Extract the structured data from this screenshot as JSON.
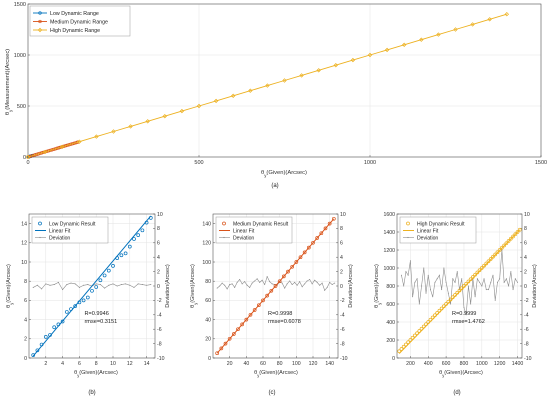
{
  "chart_data": [
    {
      "id": "a",
      "type": "line",
      "caption": "(a)",
      "xlabel": "θ_y(Given)(Arcsec)",
      "ylabel": "θ_y(Measurement)(Arcsec)",
      "xlim": [
        0,
        1500
      ],
      "ylim": [
        0,
        1500
      ],
      "xticks": [
        0,
        500,
        1000,
        1500
      ],
      "yticks": [
        0,
        500,
        1000,
        1500
      ],
      "grid": true,
      "legend": "top-left",
      "series": [
        {
          "name": "Low Dynamic Range",
          "color": "#0072BD",
          "marker": "circle",
          "x_range": [
            0,
            14.5
          ],
          "step": 0.5,
          "slope": 1.0
        },
        {
          "name": "Medium Dynamic Range",
          "color": "#D95319",
          "marker": "circle",
          "x_range": [
            0,
            145
          ],
          "step": 5,
          "slope": 1.0
        },
        {
          "name": "High Dynamic Range",
          "color": "#EDB120",
          "marker": "diamond",
          "x_range": [
            0,
            1400
          ],
          "step": 50,
          "slope": 1.0
        }
      ]
    },
    {
      "id": "b",
      "type": "line",
      "caption": "(b)",
      "xlabel": "θ_y(Given)(Arcsec)",
      "ylabel": "θ_y(Given)(Arcsec)",
      "y2label": "Deviation(Arcsec)",
      "xlim": [
        0,
        15
      ],
      "ylim": [
        0,
        15
      ],
      "y2lim": [
        -10,
        10
      ],
      "xticks": [
        2,
        4,
        6,
        8,
        10,
        12,
        14
      ],
      "yticks": [
        0,
        2,
        4,
        6,
        8,
        10,
        12,
        14
      ],
      "y2ticks": [
        -10,
        -8,
        -6,
        -4,
        -2,
        0,
        2,
        4,
        6,
        8,
        10
      ],
      "grid": true,
      "legend": "top-left",
      "color": "#0072BD",
      "marker": "circle",
      "legend_labels": [
        "Low Dynamic Result",
        "Linear Fit",
        "Deviation"
      ],
      "fit": {
        "x0": 0.5,
        "x1": 14.5,
        "y0": 0.2,
        "y1": 14.8
      },
      "result_x": [
        0.5,
        1,
        1.5,
        2,
        2.5,
        3,
        3.5,
        4,
        4.5,
        5,
        5.5,
        6,
        6.5,
        7,
        7.5,
        8,
        8.5,
        9,
        9.5,
        10,
        10.5,
        11,
        11.5,
        12,
        12.5,
        13,
        13.5,
        14,
        14.5
      ],
      "result_y": [
        0.3,
        0.8,
        1.4,
        2.2,
        2.4,
        3.2,
        3.5,
        3.8,
        4.8,
        5.1,
        5.4,
        5.8,
        6.0,
        6.3,
        7.0,
        7.4,
        8.1,
        8.6,
        9.1,
        9.6,
        10.4,
        10.7,
        10.9,
        11.6,
        12.4,
        12.8,
        13.3,
        14.1,
        14.6
      ],
      "deviation_x": [
        0.5,
        1,
        1.5,
        2,
        2.5,
        3,
        3.5,
        4,
        4.5,
        5,
        5.5,
        6,
        6.5,
        7,
        7.5,
        8,
        8.5,
        9,
        9.5,
        10,
        10.5,
        11,
        11.5,
        12,
        12.5,
        13,
        13.5,
        14,
        14.5
      ],
      "deviation_y": [
        -0.2,
        0.1,
        -0.4,
        0.3,
        0.1,
        0.2,
        0.5,
        -0.5,
        0.2,
        0.4,
        0.3,
        -0.2,
        0.1,
        0.2,
        0.0,
        0.3,
        0.2,
        -0.3,
        0.1,
        0.3,
        0.0,
        0.2,
        0.3,
        0.1,
        -0.2,
        0.3,
        0.2,
        0.1,
        0.2
      ],
      "stats": {
        "r": "R=0.9946",
        "rmse": "rmse=0.3151"
      }
    },
    {
      "id": "c",
      "type": "line",
      "caption": "(c)",
      "xlabel": "θ_y(Given)(Arcsec)",
      "ylabel": "θ_y(Given)(Arcsec)",
      "y2label": "Deviation(Arcsec)",
      "xlim": [
        0,
        150
      ],
      "ylim": [
        0,
        150
      ],
      "y2lim": [
        -10,
        10
      ],
      "xticks": [
        20,
        40,
        60,
        80,
        100,
        120,
        140
      ],
      "yticks": [
        0,
        20,
        40,
        60,
        80,
        100,
        120,
        140
      ],
      "y2ticks": [
        -10,
        -8,
        -6,
        -4,
        -2,
        0,
        2,
        4,
        6,
        8,
        10
      ],
      "grid": true,
      "legend": "top-left",
      "color": "#D95319",
      "marker": "circle",
      "legend_labels": [
        "Medium Dynamic Result",
        "Linear Fit",
        "Deviation"
      ],
      "fit": {
        "x0": 5,
        "x1": 145,
        "y0": 5,
        "y1": 145
      },
      "result_x": [
        5,
        10,
        15,
        20,
        25,
        30,
        35,
        40,
        45,
        50,
        55,
        60,
        65,
        70,
        75,
        80,
        85,
        90,
        95,
        100,
        105,
        110,
        115,
        120,
        125,
        130,
        135,
        140,
        145
      ],
      "result_y": [
        5,
        10,
        15,
        20,
        25,
        30,
        35,
        40,
        45,
        50,
        55,
        60,
        65,
        70,
        75,
        80,
        85,
        90,
        95,
        100,
        105,
        110,
        115,
        120,
        125,
        130,
        135,
        140,
        145
      ],
      "deviation_x": [
        5,
        8,
        11,
        14,
        17,
        20,
        23,
        26,
        29,
        32,
        35,
        38,
        41,
        44,
        47,
        50,
        53,
        56,
        59,
        62,
        65,
        68,
        71,
        74,
        77,
        80,
        83,
        86,
        89,
        92,
        95,
        98,
        101,
        104,
        107,
        110,
        113,
        116,
        119,
        122,
        125,
        128,
        131,
        134,
        137,
        140,
        143,
        146
      ],
      "deviation_y": [
        -0.3,
        0.0,
        0.4,
        0.1,
        -0.4,
        0.2,
        0.3,
        -0.2,
        0.5,
        0.9,
        0.3,
        0.6,
        0.1,
        -0.2,
        0.4,
        0.7,
        1.0,
        0.5,
        0.8,
        0.2,
        1.3,
        0.6,
        0.3,
        0.2,
        0.1,
        0.6,
        0.4,
        -0.3,
        0.3,
        0.7,
        0.2,
        0.5,
        0.1,
        0.6,
        -0.1,
        0.3,
        0.7,
        0.9,
        0.3,
        0.8,
        0.5,
        0.1,
        0.4,
        -0.6,
        -0.2,
        0.5,
        0.2,
        0.4
      ],
      "stats": {
        "r": "R=0.9998",
        "rmse": "rmse=0.6078"
      }
    },
    {
      "id": "d",
      "type": "line",
      "caption": "(d)",
      "xlabel": "θ_y(Given)(Arcsec)",
      "ylabel": "θ_y(Given)(Arcsec)",
      "y2label": "Deviation(Arcsec)",
      "xlim": [
        50,
        1450
      ],
      "ylim": [
        0,
        1600
      ],
      "y2lim": [
        -10,
        10
      ],
      "xticks": [
        200,
        400,
        600,
        800,
        1000,
        1200,
        1400
      ],
      "yticks": [
        0,
        200,
        400,
        600,
        800,
        1000,
        1200,
        1400,
        1600
      ],
      "y2ticks": [
        -10,
        -8,
        -6,
        -4,
        -2,
        0,
        2,
        4,
        6,
        8,
        10
      ],
      "grid": true,
      "legend": "top-left",
      "color": "#EDB120",
      "marker": "circle",
      "legend_labels": [
        "High Dynamic Result",
        "Linear Fit",
        "Deviation"
      ],
      "fit": {
        "x0": 75,
        "x1": 1425,
        "y0": 50,
        "y1": 1425
      },
      "result_x": [
        75,
        100,
        125,
        150,
        175,
        200,
        225,
        250,
        275,
        300,
        325,
        350,
        375,
        400,
        425,
        450,
        475,
        500,
        525,
        550,
        575,
        600,
        625,
        650,
        675,
        700,
        725,
        750,
        775,
        800,
        825,
        850,
        875,
        900,
        925,
        950,
        975,
        1000,
        1025,
        1050,
        1075,
        1100,
        1125,
        1150,
        1175,
        1200,
        1225,
        1250,
        1275,
        1300,
        1325,
        1350,
        1375,
        1400,
        1425
      ],
      "result_y": [
        75,
        100,
        125,
        150,
        175,
        200,
        225,
        250,
        275,
        300,
        325,
        350,
        375,
        400,
        425,
        450,
        475,
        500,
        525,
        550,
        575,
        600,
        625,
        650,
        675,
        700,
        725,
        750,
        775,
        800,
        825,
        850,
        875,
        900,
        925,
        950,
        975,
        1000,
        1025,
        1050,
        1075,
        1100,
        1125,
        1150,
        1175,
        1200,
        1225,
        1250,
        1275,
        1300,
        1325,
        1350,
        1375,
        1400,
        1425
      ],
      "deviation_x": [
        100,
        125,
        150,
        175,
        200,
        225,
        250,
        275,
        300,
        325,
        350,
        375,
        400,
        425,
        450,
        475,
        500,
        525,
        550,
        575,
        600,
        625,
        650,
        675,
        700,
        725,
        750,
        775,
        800,
        825,
        850,
        875,
        900,
        925,
        950,
        975,
        1000,
        1025,
        1050,
        1075,
        1100,
        1125,
        1150,
        1175,
        1200,
        1225,
        1250,
        1275,
        1300,
        1325,
        1350,
        1375,
        1400
      ],
      "deviation_y": [
        1.5,
        0.0,
        2.0,
        1.5,
        3.5,
        -1.5,
        0.5,
        1.0,
        -2.5,
        0.0,
        2.5,
        -1.0,
        1.5,
        -0.5,
        -1.5,
        0.5,
        1.0,
        1.5,
        -0.5,
        2.5,
        0.5,
        -1.0,
        -2.5,
        1.0,
        0.5,
        2.0,
        -0.5,
        1.0,
        -3.0,
        -4.0,
        0.0,
        -2.5,
        1.0,
        -1.5,
        1.0,
        0.5,
        0.0,
        1.0,
        -0.5,
        -0.5,
        0.5,
        1.5,
        -2.0,
        0.5,
        1.0,
        5.0,
        0.5,
        1.0,
        0.0,
        2.0,
        -0.5,
        1.0,
        0.5
      ],
      "stats": {
        "r": "R=0.9999",
        "rmse": "rmse=1.4762"
      }
    }
  ]
}
